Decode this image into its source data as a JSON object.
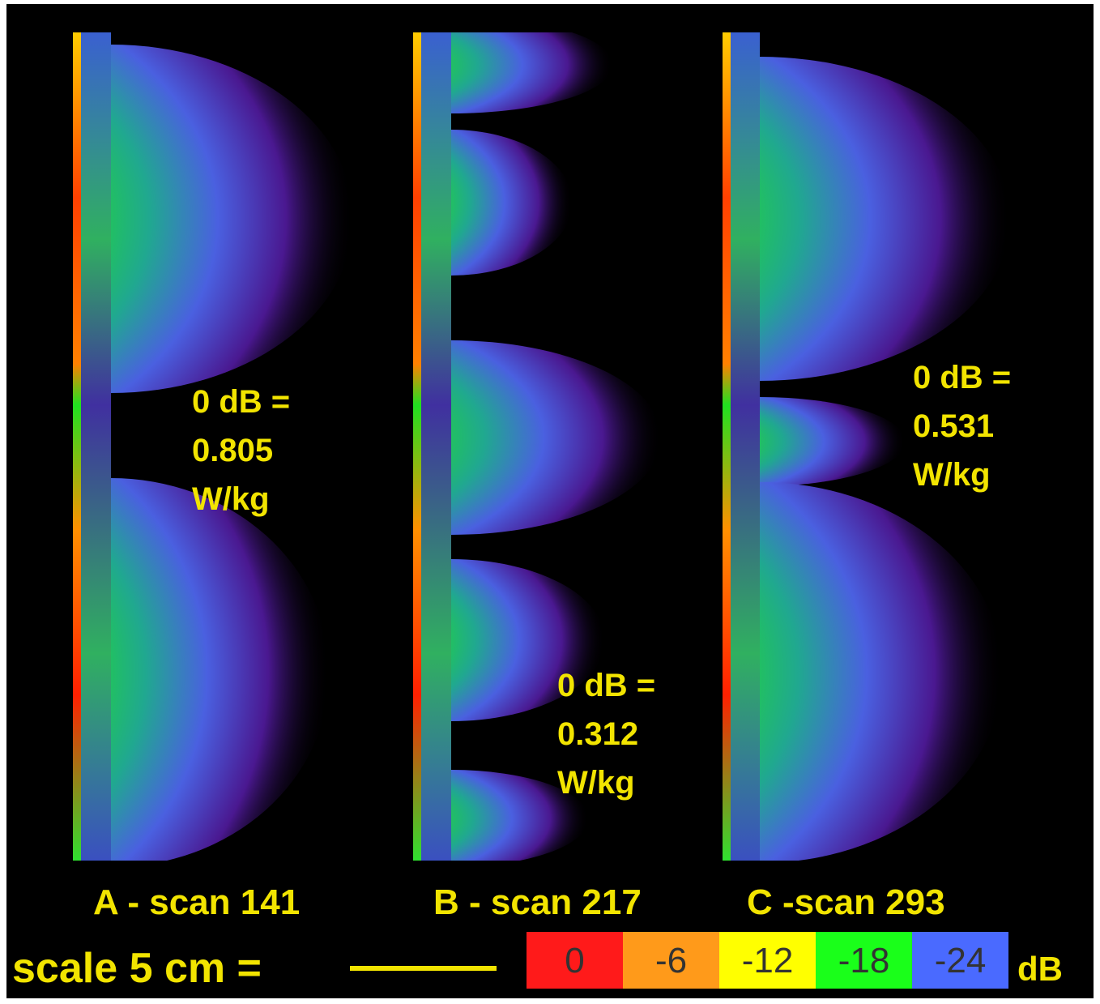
{
  "panels": [
    {
      "label": "A - scan 141",
      "annotation": [
        "0 dB =",
        "0.805",
        "W/kg"
      ]
    },
    {
      "label": "B - scan 217",
      "annotation": [
        "0 dB =",
        "0.312",
        "W/kg"
      ]
    },
    {
      "label": "C -scan 293",
      "annotation": [
        "0 dB =",
        "0.531",
        "W/kg"
      ]
    }
  ],
  "scale": {
    "label": "scale 5 cm ="
  },
  "colorbar": {
    "ticks": [
      {
        "label": "0",
        "color": "#ff1a1a"
      },
      {
        "label": "-6",
        "color": "#ff9a1a"
      },
      {
        "label": "-12",
        "color": "#ffff00"
      },
      {
        "label": "-18",
        "color": "#1aff1a"
      },
      {
        "label": "-24",
        "color": "#4a6aff"
      }
    ],
    "unit": "dB"
  }
}
